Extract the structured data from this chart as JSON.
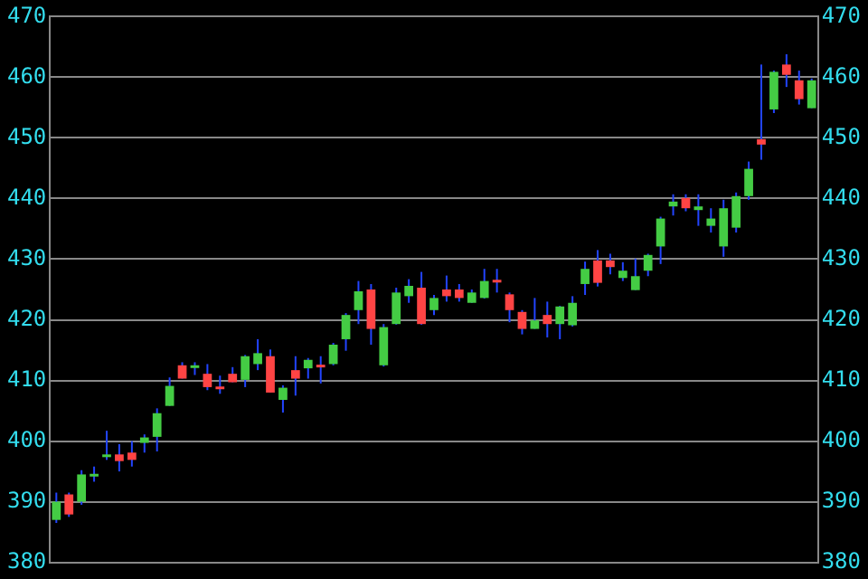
{
  "chart_data": {
    "type": "candlestick",
    "categories": [
      null,
      null,
      null,
      null,
      null,
      null,
      null,
      null,
      null,
      null,
      null,
      null,
      null,
      null,
      null,
      null,
      null,
      null,
      null,
      null,
      null,
      null,
      null,
      null,
      null,
      null,
      null,
      null,
      null,
      null,
      null,
      null,
      null,
      null,
      null,
      null,
      null,
      null,
      null,
      null,
      null,
      null,
      null,
      null,
      null,
      null,
      null,
      null,
      null,
      null,
      null,
      null,
      null,
      null,
      null,
      null,
      null,
      null,
      null,
      null,
      null
    ],
    "ohlc": [
      [
        387,
        391.5,
        386.5,
        390
      ],
      [
        391.2,
        391.5,
        387.5,
        387.9
      ],
      [
        390,
        395.2,
        389.5,
        394.5
      ],
      [
        394.4,
        395.8,
        393.3,
        394.6
      ],
      [
        397.4,
        401.7,
        396.9,
        397.8
      ],
      [
        397.8,
        399.5,
        395,
        396.7
      ],
      [
        398.1,
        400,
        395.8,
        396.9
      ],
      [
        399.7,
        401.1,
        398.1,
        400.6
      ],
      [
        400.7,
        405.4,
        398.3,
        404.6
      ],
      [
        405.8,
        410.5,
        405.8,
        409.1
      ],
      [
        412.5,
        413,
        410.3,
        410.3
      ],
      [
        412.3,
        413,
        410.9,
        412.5
      ],
      [
        411.1,
        412.7,
        408.4,
        408.9
      ],
      [
        409,
        410.8,
        407.8,
        408.8
      ],
      [
        411.1,
        412.2,
        409.7,
        409.7
      ],
      [
        410.1,
        414.2,
        408.9,
        414
      ],
      [
        412.7,
        416.8,
        411.7,
        414.5
      ],
      [
        414,
        415.1,
        408,
        408
      ],
      [
        406.8,
        409.2,
        404.7,
        408.8
      ],
      [
        411.7,
        414,
        407.5,
        410.3
      ],
      [
        412,
        413.7,
        410.3,
        413.4
      ],
      [
        412.6,
        414,
        409.5,
        412.4
      ],
      [
        412.7,
        416.2,
        412.5,
        415.9
      ],
      [
        416.8,
        421.1,
        414.9,
        420.8
      ],
      [
        421.6,
        426.4,
        419.3,
        424.7
      ],
      [
        425,
        425.9,
        415.9,
        418.5
      ],
      [
        412.5,
        419.3,
        412.3,
        418.8
      ],
      [
        419.3,
        425.3,
        419.2,
        424.5
      ],
      [
        423.9,
        426.7,
        422.8,
        425.6
      ],
      [
        425.3,
        427.9,
        419.2,
        419.3
      ],
      [
        421.6,
        424.1,
        420.8,
        423.6
      ],
      [
        425,
        427.3,
        423,
        423.9
      ],
      [
        425,
        425.9,
        423,
        423.6
      ],
      [
        422.8,
        425,
        422.8,
        424.5
      ],
      [
        423.6,
        428.4,
        423.5,
        426.4
      ],
      [
        426.6,
        428.4,
        424.5,
        426.4
      ],
      [
        424.2,
        424.5,
        419.6,
        421.6
      ],
      [
        421.3,
        421.6,
        417.6,
        418.5
      ],
      [
        418.5,
        423.6,
        418.5,
        419.9
      ],
      [
        420.8,
        423,
        417.1,
        419.3
      ],
      [
        419.3,
        422.3,
        416.8,
        422.2
      ],
      [
        419.1,
        423.9,
        418.9,
        422.8
      ],
      [
        425.9,
        429.6,
        424.1,
        428.4
      ],
      [
        429.8,
        431.5,
        425.5,
        426.1
      ],
      [
        429.8,
        430.9,
        427.5,
        428.7
      ],
      [
        426.9,
        429.5,
        426.4,
        428.1
      ],
      [
        424.9,
        430.1,
        424.9,
        427.2
      ],
      [
        428.1,
        430.9,
        427.2,
        430.7
      ],
      [
        432.1,
        437,
        429.2,
        436.7
      ],
      [
        438.7,
        440.7,
        437.2,
        439.5
      ],
      [
        440.1,
        440.7,
        437.9,
        438.4
      ],
      [
        438.1,
        440.7,
        435.5,
        438.7
      ],
      [
        435.5,
        438.4,
        434.4,
        436.7
      ],
      [
        432.1,
        439.8,
        430.4,
        438.4
      ],
      [
        435.2,
        441,
        434.4,
        440.4
      ],
      [
        440.4,
        446.1,
        439.8,
        444.9
      ],
      [
        449.8,
        462.1,
        446.4,
        448.9
      ],
      [
        454.7,
        461.1,
        454.1,
        460.9
      ],
      [
        462.1,
        463.8,
        458.4,
        460.4
      ],
      [
        459.5,
        461.1,
        455.5,
        456.4
      ],
      [
        454.9,
        459.8,
        454.9,
        459.5
      ]
    ],
    "ylim": [
      380,
      470
    ],
    "yticks": [
      380,
      390,
      400,
      410,
      420,
      430,
      440,
      450,
      460,
      470
    ],
    "y2lim": [
      380,
      470
    ],
    "y2ticks": [
      380,
      390,
      400,
      410,
      420,
      430,
      440,
      450,
      460,
      470
    ],
    "grid": "y"
  }
}
